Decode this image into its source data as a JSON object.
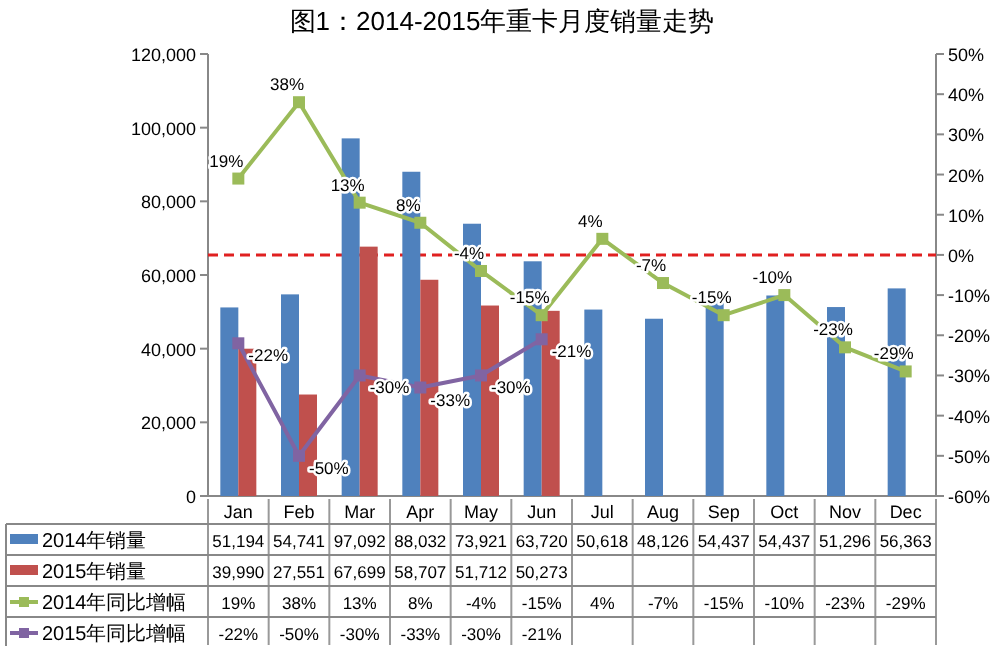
{
  "chart_data": {
    "type": "bar",
    "title": "图1：2014-2015年重卡月度销量走势",
    "categories": [
      "Jan",
      "Feb",
      "Mar",
      "Apr",
      "May",
      "Jun",
      "Jul",
      "Aug",
      "Sep",
      "Oct",
      "Nov",
      "Dec"
    ],
    "series": [
      {
        "name": "2014年销量",
        "color": "#4f81bd",
        "values": [
          51194,
          54741,
          97092,
          88032,
          73921,
          63720,
          50618,
          48126,
          54437,
          54437,
          51296,
          56363
        ],
        "value_labels": [
          "51,194",
          "54,741",
          "97,092",
          "88,032",
          "73,921",
          "63,720",
          "50,618",
          "48,126",
          "54,437",
          "54,437",
          "51,296",
          "56,363"
        ]
      },
      {
        "name": "2015年销量",
        "color": "#c0504d",
        "values": [
          39990,
          27551,
          67699,
          58707,
          51712,
          50273,
          null,
          null,
          null,
          null,
          null,
          null
        ],
        "value_labels": [
          "39,990",
          "27,551",
          "67,699",
          "58,707",
          "51,712",
          "50,273",
          null,
          null,
          null,
          null,
          null,
          null
        ]
      },
      {
        "name": "2014年同比增幅",
        "type": "line",
        "axis": "y2",
        "marker": "square",
        "color": "#9bbb59",
        "values": [
          19,
          38,
          13,
          8,
          -4,
          -15,
          4,
          -7,
          -15,
          -10,
          -23,
          -29
        ],
        "value_labels": [
          "19%",
          "38%",
          "13%",
          "8%",
          "-4%",
          "-15%",
          "4%",
          "-7%",
          "-15%",
          "-10%",
          "-23%",
          "-29%"
        ]
      },
      {
        "name": "2015年同比增幅",
        "type": "line",
        "axis": "y2",
        "marker": "square",
        "color": "#8064a2",
        "values": [
          -22,
          -50,
          -30,
          -33,
          -30,
          -21,
          null,
          null,
          null,
          null,
          null,
          null
        ],
        "value_labels": [
          "-22%",
          "-50%",
          "-30%",
          "-33%",
          "-30%",
          "-21%",
          null,
          null,
          null,
          null,
          null,
          null
        ]
      }
    ],
    "ylim": [
      0,
      120000
    ],
    "yticks": [
      {
        "value": 0,
        "label": "0"
      },
      {
        "value": 20000,
        "label": "20,000"
      },
      {
        "value": 40000,
        "label": "40,000"
      },
      {
        "value": 60000,
        "label": "60,000"
      },
      {
        "value": 80000,
        "label": "80,000"
      },
      {
        "value": 100000,
        "label": "100,000"
      },
      {
        "value": 120000,
        "label": "120,000"
      }
    ],
    "y2lim": [
      -60,
      50
    ],
    "y2ticks": [
      {
        "value": -60,
        "label": "-60%"
      },
      {
        "value": -50,
        "label": "-50%"
      },
      {
        "value": -40,
        "label": "-40%"
      },
      {
        "value": -30,
        "label": "-30%"
      },
      {
        "value": -20,
        "label": "-20%"
      },
      {
        "value": -10,
        "label": "-10%"
      },
      {
        "value": 0,
        "label": "0%"
      },
      {
        "value": 10,
        "label": "10%"
      },
      {
        "value": 20,
        "label": "20%"
      },
      {
        "value": 30,
        "label": "30%"
      },
      {
        "value": 40,
        "label": "40%"
      },
      {
        "value": 50,
        "label": "50%"
      }
    ],
    "ref_lines": [
      {
        "axis": "y2",
        "value": 0,
        "color": "#e02020",
        "line_style": "dashed"
      }
    ],
    "legend": "bottom"
  }
}
